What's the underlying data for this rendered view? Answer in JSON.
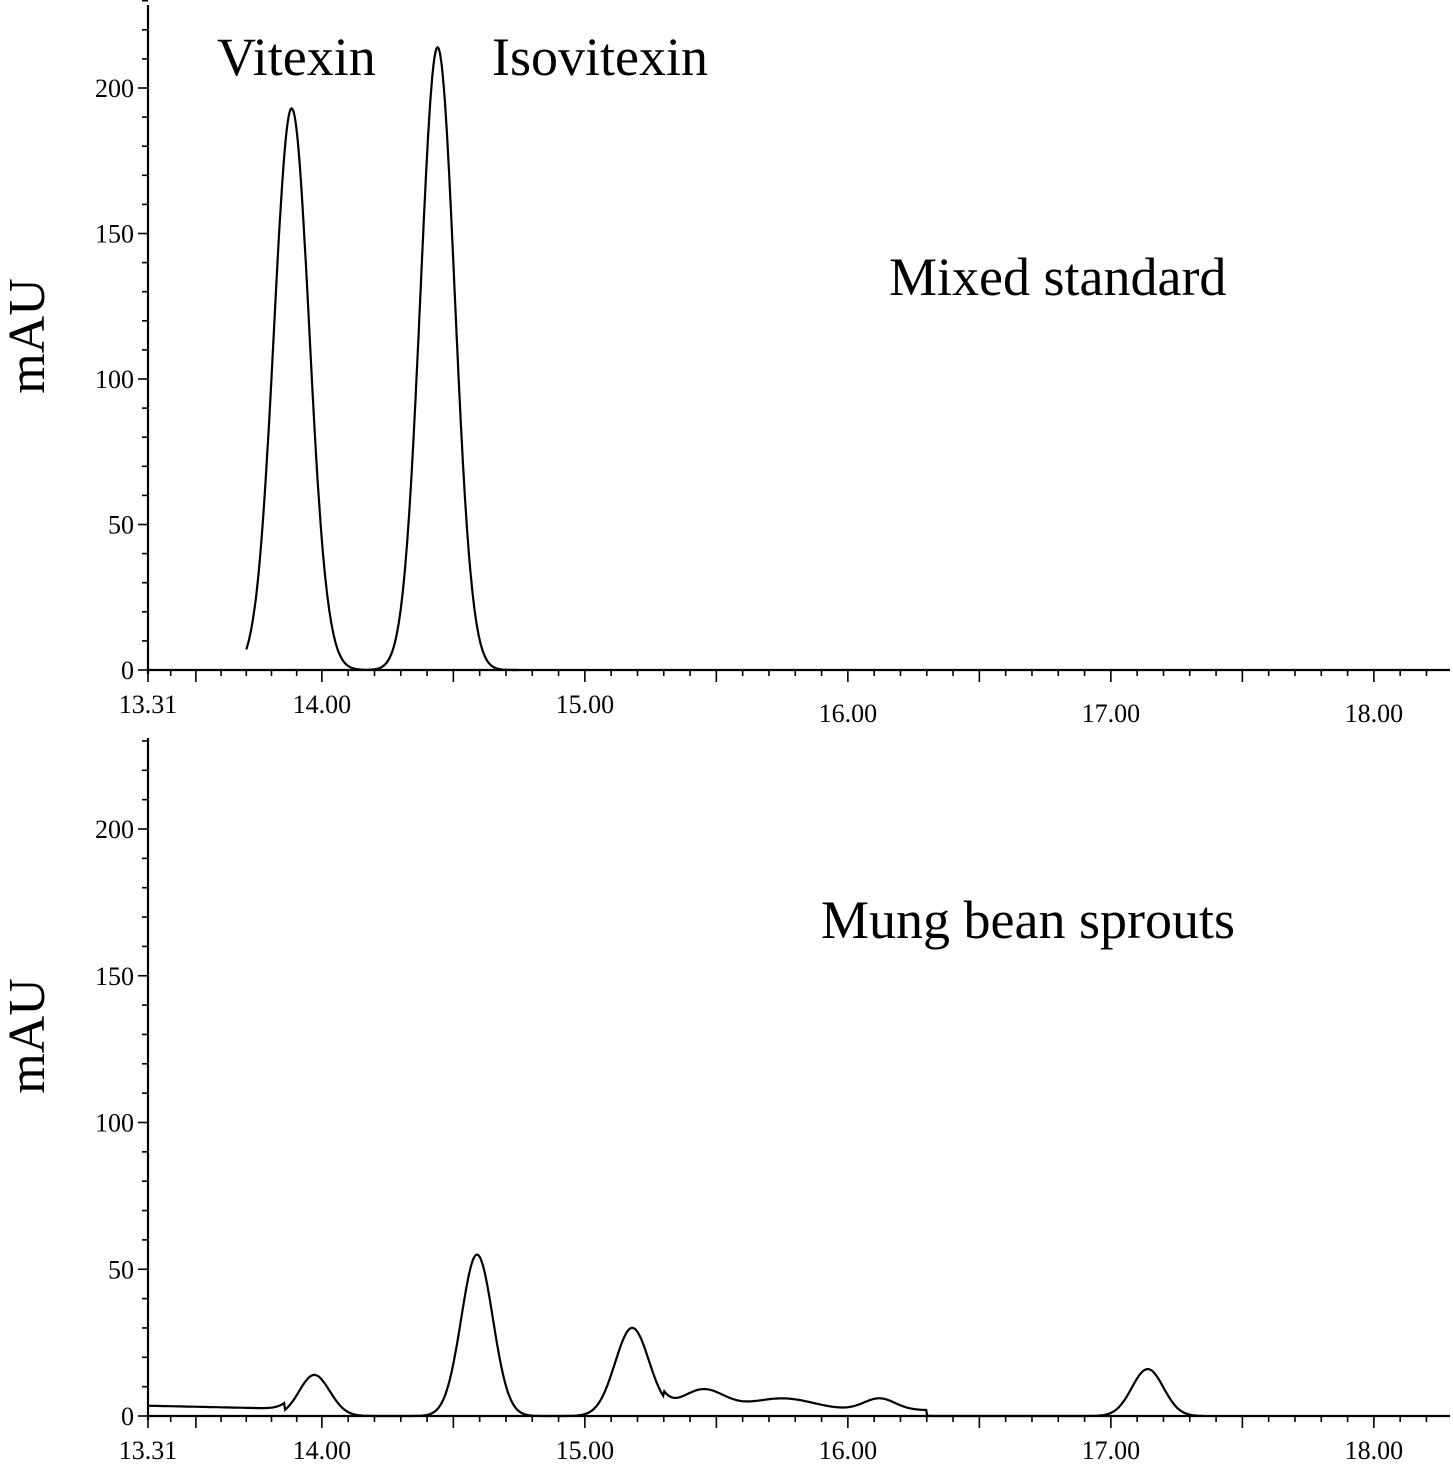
{
  "chart_data": [
    {
      "type": "line",
      "panel": "top",
      "ylabel": "mAU",
      "xlabel": "",
      "xlim": [
        13.31,
        18.25
      ],
      "ylim": [
        0,
        230
      ],
      "x_ticks": [
        "13.31",
        "14.00",
        "15.00",
        "16.00",
        "17.00",
        "18.00"
      ],
      "y_ticks": [
        "0",
        "50",
        "100",
        "150",
        "200"
      ],
      "annotations": [
        {
          "text": "Vitexin",
          "x": 13.88,
          "y": 193
        },
        {
          "text": "Isovitexin",
          "x": 14.44,
          "y": 214
        },
        {
          "text": "Mixed standard",
          "x": 16.5,
          "y": 135
        }
      ],
      "peaks": [
        {
          "center": 13.88,
          "height": 193,
          "width": 0.07
        },
        {
          "center": 14.44,
          "height": 214,
          "width": 0.065
        }
      ],
      "baseline_segments": [],
      "x_range": [
        13.7,
        14.75
      ]
    },
    {
      "type": "line",
      "panel": "bottom",
      "ylabel": "mAU",
      "xlabel": "",
      "xlim": [
        13.31,
        18.25
      ],
      "ylim": [
        0,
        230
      ],
      "x_ticks": [
        "13.31",
        "14.00",
        "15.00",
        "16.00",
        "17.00",
        "18.00"
      ],
      "y_ticks": [
        "0",
        "50",
        "100",
        "150",
        "200"
      ],
      "annotations": [
        {
          "text": "Mung bean sprouts",
          "x": 16.2,
          "y": 170
        }
      ],
      "peaks": [
        {
          "center": 13.97,
          "height": 14,
          "width": 0.06
        },
        {
          "center": 14.59,
          "height": 55,
          "width": 0.06
        },
        {
          "center": 15.18,
          "height": 30,
          "width": 0.065
        },
        {
          "center": 15.45,
          "height": 7,
          "width": 0.08
        },
        {
          "center": 15.75,
          "height": 4,
          "width": 0.12
        },
        {
          "center": 16.12,
          "height": 4,
          "width": 0.06
        },
        {
          "center": 17.14,
          "height": 16,
          "width": 0.06
        }
      ],
      "baseline_segments": [
        {
          "x0": 13.31,
          "x1": 13.85,
          "y0": 3.5,
          "y1": 2.5
        }
      ],
      "x_range": [
        13.31,
        17.35
      ]
    }
  ]
}
